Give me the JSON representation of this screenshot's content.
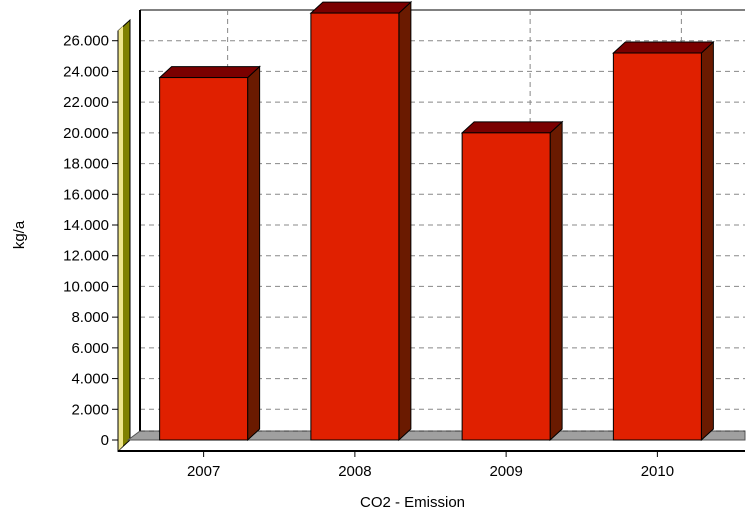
{
  "chart_data": {
    "type": "bar",
    "title": "",
    "xlabel": "CO2 - Emission",
    "ylabel": "kg/a",
    "categories": [
      "2007",
      "2008",
      "2009",
      "2010"
    ],
    "values": [
      23600,
      27800,
      20000,
      25200
    ],
    "ylim": [
      0,
      28000
    ],
    "yticks": [
      0,
      2000,
      4000,
      6000,
      8000,
      10000,
      12000,
      14000,
      16000,
      18000,
      20000,
      22000,
      24000,
      26000
    ],
    "ytick_labels": [
      "0",
      "2.000",
      "4.000",
      "6.000",
      "8.000",
      "10.000",
      "12.000",
      "14.000",
      "16.000",
      "18.000",
      "20.000",
      "22.000",
      "24.000",
      "26.000"
    ],
    "grid": true,
    "legend": "none",
    "colors": {
      "bar_front": "#e02000",
      "bar_top": "#7a0000",
      "bar_side": "#6a1a00",
      "wall": "#808000",
      "wall_light": "#f0e68c",
      "floor": "#a0a0a0",
      "grid": "#888888"
    }
  }
}
